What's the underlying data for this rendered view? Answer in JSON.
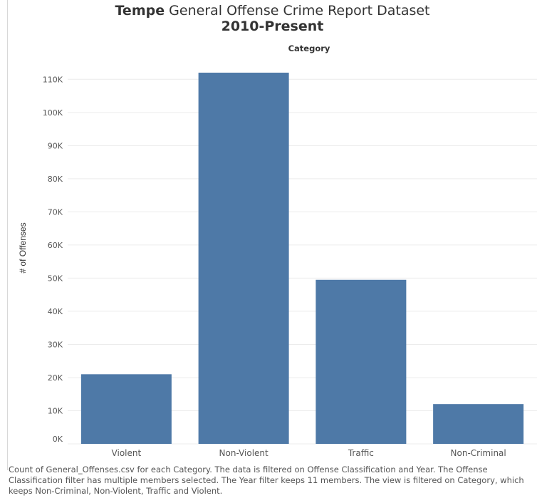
{
  "title": {
    "lead": "Tempe",
    "rest": "General Offense Crime Report Dataset",
    "line2": "2010-Present"
  },
  "chart_data": {
    "type": "bar",
    "title": "Tempe General Offense Crime Report Dataset 2010-Present",
    "column_header": "Category",
    "ylabel": "# of Offenses",
    "xlabel": "",
    "categories": [
      "Violent",
      "Non-Violent",
      "Traffic",
      "Non-Criminal"
    ],
    "values": [
      21000,
      112000,
      49500,
      12000
    ],
    "ylim": [
      0,
      112000
    ],
    "yticks": [
      0,
      10000,
      20000,
      30000,
      40000,
      50000,
      60000,
      70000,
      80000,
      90000,
      100000,
      110000
    ],
    "ytick_labels": [
      "0K",
      "10K",
      "20K",
      "30K",
      "40K",
      "50K",
      "60K",
      "70K",
      "80K",
      "90K",
      "100K",
      "110K"
    ],
    "grid": true,
    "bar_color": "#4e79a7"
  },
  "footer": {
    "caption": "Count of General_Offenses.csv for each Category. The data is filtered on Offense Classification and Year. The Offense Classification filter has multiple members selected. The Year filter keeps 11 members. The view is filtered on Category, which keeps Non-Criminal, Non-Violent, Traffic and Violent."
  }
}
